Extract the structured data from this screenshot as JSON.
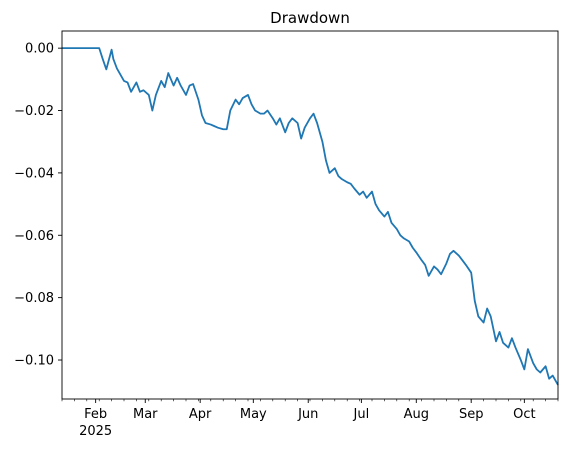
{
  "chart_data": {
    "type": "line",
    "title": "Drawdown",
    "xlabel": "",
    "ylabel": "",
    "ylim": [
      -0.1125,
      0.0055
    ],
    "xlim": [
      "2025-01-13",
      "2025-10-20"
    ],
    "grid": false,
    "legend": "none",
    "line_color": "#1f77b4",
    "y_ticks": [
      "0.00",
      "−0.02",
      "−0.04",
      "−0.06",
      "−0.08",
      "−0.10"
    ],
    "y_tick_values": [
      0.0,
      -0.02,
      -0.04,
      -0.06,
      -0.08,
      -0.1
    ],
    "x_ticks": [
      {
        "label": "Feb",
        "sublabel": "2025",
        "date": "2025-02-01"
      },
      {
        "label": "Mar",
        "sublabel": "",
        "date": "2025-03-01"
      },
      {
        "label": "Apr",
        "sublabel": "",
        "date": "2025-04-01"
      },
      {
        "label": "May",
        "sublabel": "",
        "date": "2025-05-01"
      },
      {
        "label": "Jun",
        "sublabel": "",
        "date": "2025-06-01"
      },
      {
        "label": "Jul",
        "sublabel": "",
        "date": "2025-07-01"
      },
      {
        "label": "Aug",
        "sublabel": "",
        "date": "2025-08-01"
      },
      {
        "label": "Sep",
        "sublabel": "",
        "date": "2025-09-01"
      },
      {
        "label": "Oct",
        "sublabel": "",
        "date": "2025-10-01"
      }
    ],
    "series": [
      {
        "x": [
          "2025-01-13",
          "2025-01-20",
          "2025-01-27",
          "2025-02-03",
          "2025-02-05",
          "2025-02-07",
          "2025-02-10",
          "2025-02-11",
          "2025-02-13",
          "2025-02-17",
          "2025-02-19",
          "2025-02-21",
          "2025-02-24",
          "2025-02-26",
          "2025-02-28",
          "2025-03-03",
          "2025-03-05",
          "2025-03-07",
          "2025-03-10",
          "2025-03-12",
          "2025-03-14",
          "2025-03-17",
          "2025-03-19",
          "2025-03-21",
          "2025-03-24",
          "2025-03-26",
          "2025-03-28",
          "2025-03-31",
          "2025-04-02",
          "2025-04-04",
          "2025-04-07",
          "2025-04-09",
          "2025-04-11",
          "2025-04-14",
          "2025-04-16",
          "2025-04-18",
          "2025-04-21",
          "2025-04-23",
          "2025-04-25",
          "2025-04-28",
          "2025-04-30",
          "2025-05-02",
          "2025-05-05",
          "2025-05-07",
          "2025-05-09",
          "2025-05-12",
          "2025-05-14",
          "2025-05-16",
          "2025-05-19",
          "2025-05-21",
          "2025-05-23",
          "2025-05-26",
          "2025-05-28",
          "2025-05-30",
          "2025-06-02",
          "2025-06-04",
          "2025-06-06",
          "2025-06-09",
          "2025-06-11",
          "2025-06-13",
          "2025-06-16",
          "2025-06-18",
          "2025-06-20",
          "2025-06-23",
          "2025-06-25",
          "2025-06-27",
          "2025-06-30",
          "2025-07-02",
          "2025-07-04",
          "2025-07-07",
          "2025-07-09",
          "2025-07-11",
          "2025-07-14",
          "2025-07-16",
          "2025-07-18",
          "2025-07-21",
          "2025-07-23",
          "2025-07-25",
          "2025-07-28",
          "2025-07-30",
          "2025-08-01",
          "2025-08-04",
          "2025-08-06",
          "2025-08-08",
          "2025-08-11",
          "2025-08-13",
          "2025-08-15",
          "2025-08-18",
          "2025-08-20",
          "2025-08-22",
          "2025-08-25",
          "2025-08-27",
          "2025-08-29",
          "2025-09-01",
          "2025-09-03",
          "2025-09-05",
          "2025-09-08",
          "2025-09-10",
          "2025-09-12",
          "2025-09-15",
          "2025-09-17",
          "2025-09-19",
          "2025-09-22",
          "2025-09-24",
          "2025-09-26",
          "2025-09-29",
          "2025-10-01",
          "2025-10-03",
          "2025-10-06",
          "2025-10-08",
          "2025-10-10",
          "2025-10-13",
          "2025-10-15",
          "2025-10-17",
          "2025-10-20"
        ],
        "y": [
          0.0,
          0.0,
          0.0,
          0.0,
          -0.0035,
          -0.0068,
          -0.0005,
          -0.0035,
          -0.0065,
          -0.0105,
          -0.011,
          -0.014,
          -0.011,
          -0.014,
          -0.0135,
          -0.015,
          -0.02,
          -0.015,
          -0.0105,
          -0.0125,
          -0.008,
          -0.012,
          -0.0095,
          -0.012,
          -0.015,
          -0.012,
          -0.0115,
          -0.0165,
          -0.0215,
          -0.024,
          -0.0245,
          -0.025,
          -0.0255,
          -0.026,
          -0.026,
          -0.02,
          -0.0165,
          -0.018,
          -0.016,
          -0.015,
          -0.018,
          -0.02,
          -0.021,
          -0.021,
          -0.02,
          -0.0225,
          -0.0245,
          -0.0225,
          -0.027,
          -0.024,
          -0.0225,
          -0.024,
          -0.029,
          -0.0255,
          -0.0225,
          -0.021,
          -0.024,
          -0.03,
          -0.036,
          -0.04,
          -0.0385,
          -0.041,
          -0.042,
          -0.043,
          -0.0435,
          -0.045,
          -0.047,
          -0.046,
          -0.048,
          -0.046,
          -0.05,
          -0.052,
          -0.054,
          -0.0525,
          -0.056,
          -0.058,
          -0.06,
          -0.061,
          -0.062,
          -0.064,
          -0.0655,
          -0.068,
          -0.0695,
          -0.073,
          -0.07,
          -0.071,
          -0.0725,
          -0.069,
          -0.066,
          -0.065,
          -0.0665,
          -0.068,
          -0.0695,
          -0.072,
          -0.081,
          -0.086,
          -0.088,
          -0.0835,
          -0.086,
          -0.094,
          -0.091,
          -0.0945,
          -0.096,
          -0.093,
          -0.096,
          -0.1,
          -0.103,
          -0.0965,
          -0.101,
          -0.103,
          -0.104,
          -0.102,
          -0.106,
          -0.105,
          -0.108
        ]
      }
    ]
  }
}
